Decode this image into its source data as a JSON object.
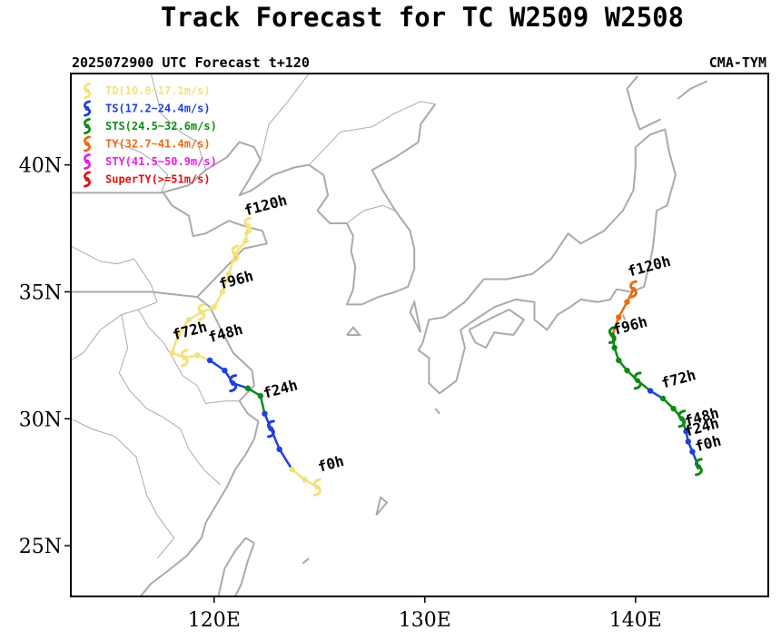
{
  "title": "Track Forecast for TC W2509 W2508",
  "subtitle_left": "2025072900 UTC Forecast t+120",
  "subtitle_right": "CMA-TYM",
  "axes": {
    "lon_range": [
      113.2,
      146.3
    ],
    "lat_range": [
      23.0,
      43.6
    ],
    "lon_ticks": [
      {
        "v": 120,
        "label": "120E"
      },
      {
        "v": 130,
        "label": "130E"
      },
      {
        "v": 140,
        "label": "140E"
      }
    ],
    "lat_ticks": [
      {
        "v": 25,
        "label": "25N"
      },
      {
        "v": 30,
        "label": "30N"
      },
      {
        "v": 35,
        "label": "35N"
      },
      {
        "v": 40,
        "label": "40N"
      }
    ]
  },
  "legend": [
    {
      "label": "TD(10.8~17.1m/s)",
      "color": "#f5e17a"
    },
    {
      "label": "TS(17.2~24.4m/s)",
      "color": "#1e3fe0"
    },
    {
      "label": "STS(24.5~32.6m/s)",
      "color": "#0e8a16"
    },
    {
      "label": "TY(32.7~41.4m/s)",
      "color": "#ee6a10"
    },
    {
      "label": "STY(41.5~50.9m/s)",
      "color": "#e61ee6"
    },
    {
      "label": "SuperTY(>=51m/s)",
      "color": "#e01010"
    }
  ],
  "colors": {
    "TD": "#f5e17a",
    "TS": "#1e3fe0",
    "STS": "#0e8a16",
    "TY": "#ee6a10",
    "STY": "#e61ee6",
    "SuperTY": "#e01010",
    "land": "#aaaaaa"
  },
  "tracks": [
    {
      "name": "W2509",
      "points": [
        {
          "lon": 124.9,
          "lat": 27.3,
          "cat": "TD"
        },
        {
          "lon": 124.3,
          "lat": 27.6,
          "cat": "TD"
        },
        {
          "lon": 123.7,
          "lat": 28.0,
          "cat": "TD"
        },
        {
          "lon": 123.1,
          "lat": 28.8,
          "cat": "TS"
        },
        {
          "lon": 122.7,
          "lat": 29.6,
          "cat": "TS"
        },
        {
          "lon": 122.4,
          "lat": 30.2,
          "cat": "TS"
        },
        {
          "lon": 122.2,
          "lat": 30.9,
          "cat": "STS"
        },
        {
          "lon": 121.6,
          "lat": 31.2,
          "cat": "STS"
        },
        {
          "lon": 120.9,
          "lat": 31.4,
          "cat": "TS"
        },
        {
          "lon": 120.5,
          "lat": 31.9,
          "cat": "TS"
        },
        {
          "lon": 119.8,
          "lat": 32.3,
          "cat": "TS"
        },
        {
          "lon": 119.2,
          "lat": 32.5,
          "cat": "TD"
        },
        {
          "lon": 118.6,
          "lat": 32.4,
          "cat": "TD"
        },
        {
          "lon": 118.0,
          "lat": 32.6,
          "cat": "TD"
        },
        {
          "lon": 118.3,
          "lat": 33.3,
          "cat": "TD"
        },
        {
          "lon": 118.8,
          "lat": 33.9,
          "cat": "TD"
        },
        {
          "lon": 119.4,
          "lat": 34.2,
          "cat": "TD"
        },
        {
          "lon": 120.0,
          "lat": 34.4,
          "cat": "TD"
        },
        {
          "lon": 120.4,
          "lat": 35.0,
          "cat": "TD"
        },
        {
          "lon": 120.7,
          "lat": 35.7,
          "cat": "TD"
        },
        {
          "lon": 121.0,
          "lat": 36.5,
          "cat": "TD"
        },
        {
          "lon": 121.5,
          "lat": 37.0,
          "cat": "TD"
        },
        {
          "lon": 121.6,
          "lat": 37.6,
          "cat": "TD"
        }
      ],
      "labels": [
        {
          "text": "f0h",
          "lon": 125.0,
          "lat": 27.9
        },
        {
          "text": "f24h",
          "lon": 122.4,
          "lat": 30.8
        },
        {
          "text": "f48h",
          "lon": 119.8,
          "lat": 33.0
        },
        {
          "text": "f72h",
          "lon": 118.1,
          "lat": 33.1
        },
        {
          "text": "f96h",
          "lon": 120.3,
          "lat": 35.1
        },
        {
          "text": "f120h",
          "lon": 121.5,
          "lat": 38.0
        }
      ]
    },
    {
      "name": "W2508",
      "points": [
        {
          "lon": 143.0,
          "lat": 28.1,
          "cat": "STS"
        },
        {
          "lon": 142.7,
          "lat": 28.7,
          "cat": "TS"
        },
        {
          "lon": 142.5,
          "lat": 29.1,
          "cat": "TS"
        },
        {
          "lon": 142.4,
          "lat": 29.5,
          "cat": "TS"
        },
        {
          "lon": 142.2,
          "lat": 30.0,
          "cat": "STS"
        },
        {
          "lon": 141.8,
          "lat": 30.4,
          "cat": "STS"
        },
        {
          "lon": 141.3,
          "lat": 30.8,
          "cat": "STS"
        },
        {
          "lon": 140.7,
          "lat": 31.1,
          "cat": "TS"
        },
        {
          "lon": 140.1,
          "lat": 31.5,
          "cat": "STS"
        },
        {
          "lon": 139.6,
          "lat": 31.9,
          "cat": "STS"
        },
        {
          "lon": 139.2,
          "lat": 32.3,
          "cat": "STS"
        },
        {
          "lon": 139.0,
          "lat": 32.8,
          "cat": "STS"
        },
        {
          "lon": 138.9,
          "lat": 33.3,
          "cat": "STS"
        },
        {
          "lon": 139.2,
          "lat": 34.0,
          "cat": "TY"
        },
        {
          "lon": 139.6,
          "lat": 34.6,
          "cat": "TY"
        },
        {
          "lon": 139.9,
          "lat": 35.1,
          "cat": "TY"
        }
      ],
      "labels": [
        {
          "text": "f0h",
          "lon": 142.9,
          "lat": 28.7
        },
        {
          "text": "f24h",
          "lon": 142.4,
          "lat": 29.3
        },
        {
          "text": "f48h",
          "lon": 142.4,
          "lat": 29.7
        },
        {
          "text": "f72h",
          "lon": 141.3,
          "lat": 31.2
        },
        {
          "text": "f96h",
          "lon": 139.0,
          "lat": 33.3
        },
        {
          "text": "f120h",
          "lon": 139.7,
          "lat": 35.6
        }
      ]
    }
  ],
  "coastlines": [
    [
      [
        113.2,
        38.9
      ],
      [
        117.5,
        38.9
      ],
      [
        118.8,
        39.2
      ],
      [
        119.6,
        39.8
      ],
      [
        120.6,
        40.3
      ],
      [
        121.2,
        40.9
      ],
      [
        121.9,
        40.7
      ],
      [
        122.2,
        40.2
      ],
      [
        121.5,
        39.2
      ],
      [
        121.2,
        38.8
      ],
      [
        121.8,
        39.0
      ],
      [
        122.8,
        39.6
      ],
      [
        123.8,
        39.9
      ],
      [
        124.5,
        40.0
      ]
    ],
    [
      [
        124.5,
        40.0
      ],
      [
        125.2,
        39.6
      ],
      [
        125.4,
        38.8
      ],
      [
        124.9,
        38.2
      ],
      [
        125.5,
        37.7
      ],
      [
        126.3,
        37.7
      ],
      [
        126.6,
        37.2
      ],
      [
        126.5,
        36.6
      ],
      [
        126.7,
        36.0
      ],
      [
        126.6,
        35.1
      ],
      [
        126.3,
        34.5
      ],
      [
        127.0,
        34.5
      ],
      [
        127.8,
        34.8
      ],
      [
        128.6,
        35.0
      ],
      [
        129.2,
        35.2
      ],
      [
        129.5,
        35.9
      ],
      [
        129.5,
        36.7
      ],
      [
        129.3,
        37.4
      ],
      [
        128.6,
        38.2
      ],
      [
        128.0,
        39.0
      ],
      [
        127.5,
        39.8
      ],
      [
        128.6,
        40.3
      ],
      [
        129.7,
        40.9
      ],
      [
        129.8,
        41.6
      ],
      [
        130.5,
        42.4
      ]
    ],
    [
      [
        113.2,
        35.0
      ],
      [
        117.0,
        35.0
      ],
      [
        119.2,
        34.8
      ],
      [
        119.9,
        35.4
      ],
      [
        120.6,
        36.0
      ],
      [
        121.4,
        36.7
      ],
      [
        122.5,
        36.9
      ],
      [
        122.3,
        37.4
      ],
      [
        121.4,
        37.6
      ],
      [
        120.7,
        37.8
      ],
      [
        119.6,
        37.3
      ],
      [
        119.0,
        37.2
      ],
      [
        118.8,
        38.0
      ],
      [
        118.0,
        38.4
      ],
      [
        117.6,
        38.9
      ]
    ],
    [
      [
        119.2,
        34.8
      ],
      [
        119.8,
        34.4
      ],
      [
        120.4,
        33.4
      ],
      [
        120.9,
        32.6
      ],
      [
        121.8,
        31.9
      ],
      [
        121.9,
        31.3
      ],
      [
        121.2,
        30.7
      ],
      [
        121.6,
        30.2
      ],
      [
        122.1,
        29.9
      ],
      [
        121.9,
        29.2
      ],
      [
        121.5,
        28.6
      ],
      [
        121.0,
        28.0
      ],
      [
        120.6,
        27.3
      ],
      [
        120.1,
        26.6
      ],
      [
        119.6,
        25.9
      ],
      [
        119.4,
        25.3
      ],
      [
        118.7,
        24.6
      ],
      [
        117.8,
        24.0
      ],
      [
        117.0,
        23.5
      ],
      [
        116.5,
        23.0
      ]
    ],
    [
      [
        121.9,
        25.1
      ],
      [
        121.6,
        24.4
      ],
      [
        121.3,
        23.5
      ],
      [
        121.0,
        23.0
      ]
    ],
    [
      [
        120.2,
        23.0
      ],
      [
        120.5,
        24.1
      ],
      [
        121.0,
        24.8
      ],
      [
        121.5,
        25.3
      ],
      [
        121.9,
        25.1
      ]
    ],
    [
      [
        129.9,
        33.0
      ],
      [
        130.2,
        33.9
      ],
      [
        130.9,
        34.0
      ],
      [
        131.9,
        34.6
      ],
      [
        132.8,
        35.5
      ],
      [
        133.9,
        35.5
      ],
      [
        135.1,
        35.7
      ],
      [
        136.0,
        36.3
      ],
      [
        136.8,
        37.3
      ],
      [
        137.4,
        36.9
      ],
      [
        138.5,
        37.4
      ],
      [
        139.4,
        38.2
      ],
      [
        139.9,
        39.0
      ],
      [
        140.0,
        39.9
      ],
      [
        140.0,
        40.7
      ],
      [
        140.7,
        41.2
      ],
      [
        141.4,
        41.4
      ],
      [
        141.6,
        40.5
      ],
      [
        141.9,
        39.6
      ],
      [
        141.5,
        38.4
      ],
      [
        141.0,
        38.2
      ],
      [
        140.9,
        37.3
      ],
      [
        140.8,
        36.6
      ],
      [
        140.6,
        35.9
      ],
      [
        140.4,
        35.2
      ],
      [
        139.8,
        35.0
      ],
      [
        139.1,
        35.1
      ],
      [
        138.8,
        34.7
      ],
      [
        138.2,
        34.6
      ],
      [
        137.4,
        34.7
      ],
      [
        136.9,
        34.4
      ],
      [
        136.3,
        34.1
      ],
      [
        135.8,
        33.5
      ],
      [
        135.2,
        33.9
      ],
      [
        135.2,
        34.6
      ],
      [
        134.3,
        34.7
      ],
      [
        133.3,
        34.4
      ],
      [
        132.2,
        33.8
      ],
      [
        131.7,
        33.5
      ],
      [
        131.9,
        32.8
      ],
      [
        131.5,
        31.5
      ],
      [
        130.7,
        31.0
      ],
      [
        130.2,
        31.4
      ],
      [
        130.2,
        32.4
      ],
      [
        129.7,
        32.7
      ],
      [
        129.9,
        33.0
      ]
    ],
    [
      [
        132.1,
        33.5
      ],
      [
        133.0,
        33.9
      ],
      [
        134.0,
        34.3
      ],
      [
        134.7,
        33.9
      ],
      [
        134.2,
        33.3
      ],
      [
        133.3,
        33.4
      ],
      [
        132.9,
        32.8
      ],
      [
        132.4,
        33.0
      ],
      [
        132.1,
        33.5
      ]
    ],
    [
      [
        141.2,
        41.8
      ],
      [
        140.2,
        41.4
      ],
      [
        139.9,
        42.1
      ],
      [
        139.6,
        43.0
      ],
      [
        140.1,
        43.5
      ]
    ],
    [
      [
        142.0,
        42.6
      ],
      [
        142.6,
        43.0
      ],
      [
        143.4,
        43.3
      ]
    ]
  ],
  "borders": [
    [
      [
        117.0,
        43.6
      ],
      [
        117.5,
        42.0
      ],
      [
        118.4,
        41.3
      ],
      [
        119.2,
        40.9
      ],
      [
        119.6,
        39.8
      ]
    ],
    [
      [
        115.0,
        41.0
      ],
      [
        116.5,
        40.5
      ],
      [
        117.2,
        40.1
      ],
      [
        117.8,
        39.6
      ],
      [
        117.5,
        38.9
      ]
    ],
    [
      [
        113.2,
        36.8
      ],
      [
        114.6,
        36.2
      ],
      [
        115.4,
        36.1
      ],
      [
        116.2,
        36.3
      ],
      [
        117.0,
        35.3
      ],
      [
        117.3,
        34.6
      ],
      [
        116.4,
        34.3
      ],
      [
        115.6,
        34.1
      ],
      [
        114.6,
        33.5
      ],
      [
        113.8,
        32.6
      ],
      [
        113.2,
        32.3
      ]
    ],
    [
      [
        116.4,
        34.3
      ],
      [
        116.9,
        33.6
      ],
      [
        117.6,
        33.0
      ],
      [
        118.1,
        32.3
      ],
      [
        118.5,
        31.7
      ],
      [
        119.2,
        31.3
      ],
      [
        119.6,
        30.6
      ],
      [
        120.5,
        30.7
      ],
      [
        121.2,
        30.7
      ]
    ],
    [
      [
        115.6,
        34.1
      ],
      [
        115.9,
        32.8
      ],
      [
        115.5,
        31.8
      ],
      [
        116.0,
        31.1
      ],
      [
        116.8,
        30.4
      ],
      [
        117.5,
        30.1
      ],
      [
        118.4,
        29.6
      ],
      [
        118.8,
        28.8
      ],
      [
        119.5,
        28.0
      ],
      [
        120.3,
        27.4
      ]
    ],
    [
      [
        113.2,
        30.0
      ],
      [
        114.2,
        29.6
      ],
      [
        115.3,
        29.3
      ],
      [
        116.3,
        28.5
      ],
      [
        116.8,
        27.0
      ],
      [
        117.3,
        26.2
      ],
      [
        118.1,
        25.3
      ],
      [
        117.3,
        24.5
      ]
    ],
    [
      [
        124.5,
        40.0
      ],
      [
        126.0,
        41.3
      ],
      [
        127.5,
        41.5
      ],
      [
        128.5,
        42.0
      ],
      [
        129.8,
        42.5
      ],
      [
        130.5,
        42.4
      ]
    ],
    [
      [
        126.3,
        37.7
      ],
      [
        127.1,
        38.2
      ],
      [
        128.0,
        38.4
      ],
      [
        128.6,
        38.2
      ]
    ],
    [
      [
        122.2,
        40.2
      ],
      [
        122.6,
        41.6
      ],
      [
        123.5,
        42.5
      ],
      [
        124.5,
        43.6
      ]
    ]
  ],
  "islands": [
    [
      [
        129.8,
        33.4
      ],
      [
        129.5,
        34.6
      ],
      [
        129.3,
        34.2
      ],
      [
        129.8,
        33.4
      ]
    ],
    [
      [
        126.3,
        33.3
      ],
      [
        126.9,
        33.3
      ],
      [
        126.6,
        33.6
      ],
      [
        126.3,
        33.3
      ]
    ],
    [
      [
        139.4,
        34.1
      ],
      [
        139.5,
        33.9
      ]
    ],
    [
      [
        124.5,
        24.5
      ],
      [
        124.2,
        24.3
      ]
    ],
    [
      [
        127.7,
        26.2
      ],
      [
        128.2,
        26.7
      ],
      [
        127.9,
        26.9
      ],
      [
        127.7,
        26.2
      ]
    ],
    [
      [
        130.5,
        30.4
      ],
      [
        130.7,
        30.2
      ]
    ]
  ]
}
